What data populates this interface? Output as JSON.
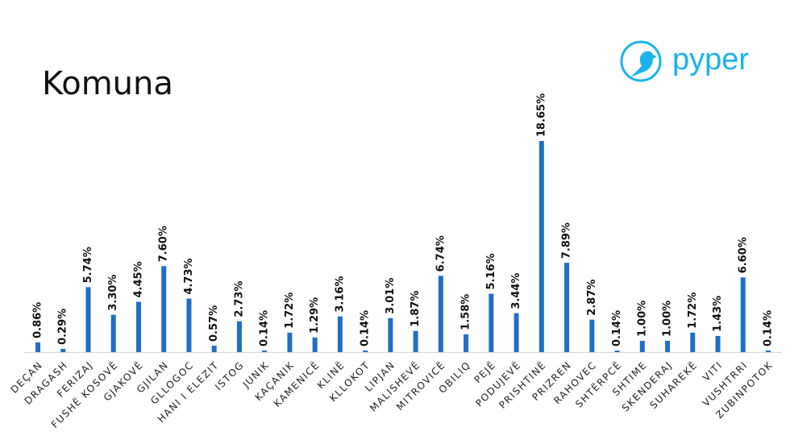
{
  "chart_data": {
    "type": "bar",
    "title": "Komuna",
    "categories": [
      "DEÇAN",
      "DRAGASH",
      "FERIZAJ",
      "FUSHË KOSOVË",
      "GJAKOVË",
      "GJILAN",
      "GLLOGOC",
      "HANI I ELEZIT",
      "ISTOG",
      "JUNIK",
      "KAÇANIK",
      "KAMENICË",
      "KLINË",
      "KLLOKOT",
      "LIPJAN",
      "MALISHEVË",
      "MITROVICË",
      "OBILIQ",
      "PEJË",
      "PODUJEVË",
      "PRISHTINË",
      "PRIZREN",
      "RAHOVEC",
      "SHTËRPCË",
      "SHTIME",
      "SKENDERAJ",
      "SUHAREKË",
      "VITI",
      "VUSHTRRI",
      "ZUBINPOTOK"
    ],
    "values": [
      0.86,
      0.29,
      5.74,
      3.3,
      4.45,
      7.6,
      4.73,
      0.57,
      2.73,
      0.14,
      1.72,
      1.29,
      3.16,
      0.14,
      3.01,
      1.87,
      6.74,
      1.58,
      5.16,
      3.44,
      18.65,
      7.89,
      2.87,
      0.14,
      1.0,
      1.0,
      1.72,
      1.43,
      6.6,
      0.14
    ],
    "value_labels": [
      "0.86%",
      "0.29%",
      "5.74%",
      "3.30%",
      "4.45%",
      "7.60%",
      "4.73%",
      "0.57%",
      "2.73%",
      "0.14%",
      "1.72%",
      "1.29%",
      "3.16%",
      "0.14%",
      "3.01%",
      "1.87%",
      "6.74%",
      "1.58%",
      "5.16%",
      "3.44%",
      "18.65%",
      "7.89%",
      "2.87%",
      "0.14%",
      "1.00%",
      "1.00%",
      "1.72%",
      "1.43%",
      "6.60%",
      "0.14%"
    ],
    "color": "#1f6fc5"
  },
  "logo": "pyper"
}
